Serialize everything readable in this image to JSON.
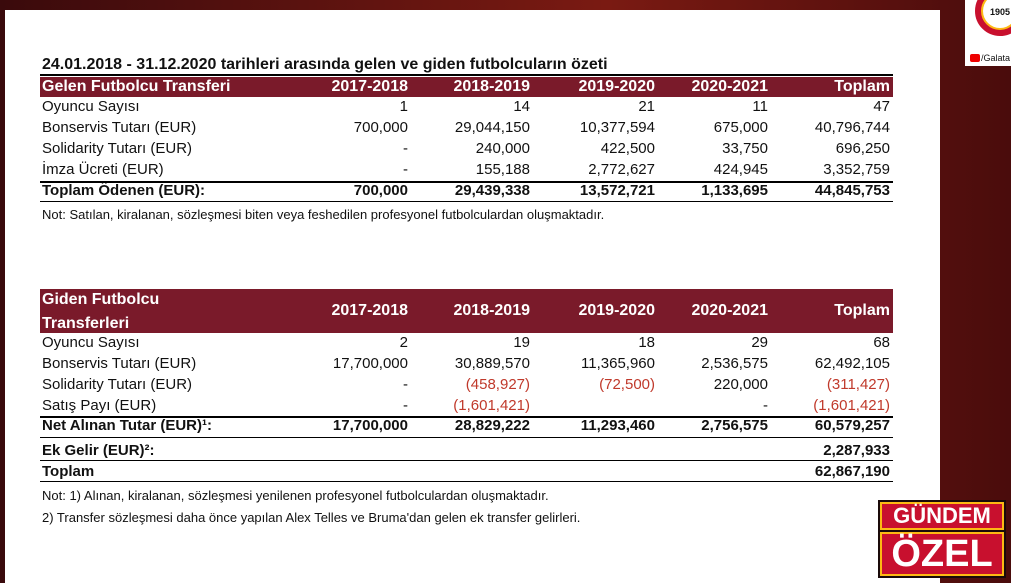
{
  "tables": [
    {
      "title": "24.01.2018 - 31.12.2020 tarihleri arasında gelen ve giden futbolcuların özeti",
      "header": [
        "Gelen Futbolcu Transferi",
        "2017-2018",
        "2018-2019",
        "2019-2020",
        "2020-2021",
        "Toplam"
      ],
      "rows": [
        [
          "Oyuncu Sayısı",
          "1",
          "14",
          "21",
          "11",
          "47"
        ],
        [
          "Bonservis Tutarı (EUR)",
          "700,000",
          "29,044,150",
          "10,377,594",
          "675,000",
          "40,796,744"
        ],
        [
          "Solidarity Tutarı (EUR)",
          "-",
          "240,000",
          "422,500",
          "33,750",
          "696,250"
        ],
        [
          "İmza Ücreti (EUR)",
          "-",
          "155,188",
          "2,772,627",
          "424,945",
          "3,352,759"
        ],
        [
          "Toplam Ödenen (EUR):",
          "700,000",
          "29,439,338",
          "13,572,721",
          "1,133,695",
          "44,845,753"
        ]
      ],
      "notes": [
        "Not: Satılan, kiralanan, sözleşmesi biten veya feshedilen profesyonel futbolculardan oluşmaktadır."
      ]
    },
    {
      "header": [
        "Giden Futbolcu Transferleri",
        "2017-2018",
        "2018-2019",
        "2019-2020",
        "2020-2021",
        "Toplam"
      ],
      "rows": [
        [
          "Oyuncu Sayısı",
          "2",
          "19",
          "18",
          "29",
          "68"
        ],
        [
          "Bonservis Tutarı (EUR)",
          "17,700,000",
          "30,889,570",
          "11,365,960",
          "2,536,575",
          "62,492,105"
        ],
        [
          "Solidarity Tutarı (EUR)",
          "-",
          "(458,927)",
          "(72,500)",
          "220,000",
          "(311,427)"
        ],
        [
          "Satış Payı (EUR)",
          "-",
          "(1,601,421)",
          null,
          "-",
          "(1,601,421)"
        ],
        [
          "Net Alınan Tutar (EUR)¹:",
          "17,700,000",
          "28,829,222",
          "11,293,460",
          "2,756,575",
          "60,579,257"
        ],
        [
          "Ek Gelir (EUR)²:",
          null,
          null,
          null,
          null,
          "2,287,933"
        ],
        [
          "Toplam",
          null,
          null,
          null,
          null,
          "62,867,190"
        ]
      ],
      "notes": [
        "Not: 1) Alınan, kiralanan, sözleşmesi yenilenen profesyonel futbolculardan oluşmaktadır.",
        "2) Transfer sözleşmesi daha önce yapılan Alex Telles ve Bruma'dan gelen ek transfer gelirleri."
      ]
    }
  ],
  "logo": {
    "year": "1905",
    "channel": "/Galata"
  },
  "badge": {
    "line1": "GÜNDEM",
    "line2": "ÖZEL"
  }
}
